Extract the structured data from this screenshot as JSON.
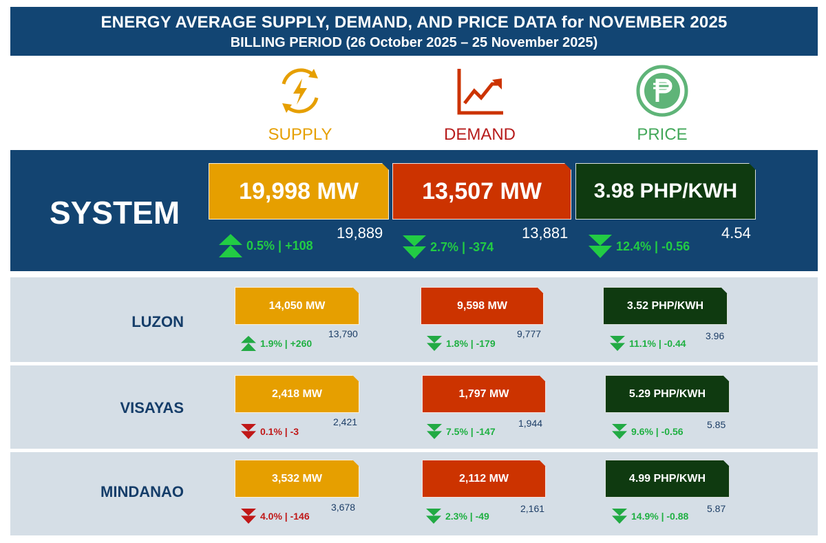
{
  "header": {
    "title": "ENERGY AVERAGE SUPPLY, DEMAND, AND PRICE DATA for NOVEMBER 2025",
    "subtitle": "BILLING PERIOD (26 October 2025 – 25 November 2025)"
  },
  "categories": {
    "supply": "SUPPLY",
    "demand": "DEMAND",
    "price": "PRICE"
  },
  "colors": {
    "supply": "#e69f00",
    "demand": "#cc3300",
    "price": "#0f3a10",
    "up": "#22cc44",
    "down_good": "#22cc44",
    "down_bad": "#c01818"
  },
  "system": {
    "label": "SYSTEM",
    "supply": {
      "value": "19,998 MW",
      "previous": "19,889",
      "change": "0.5% | +108",
      "direction": "up"
    },
    "demand": {
      "value": "13,507 MW",
      "previous": "13,881",
      "change": "2.7% | -374",
      "direction": "down"
    },
    "price": {
      "value": "3.98 PHP/KWH",
      "previous": "4.54",
      "change": "12.4% | -0.56",
      "direction": "down"
    }
  },
  "regions": [
    {
      "label": "LUZON",
      "supply": {
        "value": "14,050 MW",
        "previous": "13,790",
        "change": "1.9% | +260",
        "direction": "up"
      },
      "demand": {
        "value": "9,598 MW",
        "previous": "9,777",
        "change": "1.8% | -179",
        "direction": "down"
      },
      "price": {
        "value": "3.52 PHP/KWH",
        "previous": "3.96",
        "change": "11.1% | -0.44",
        "direction": "down"
      }
    },
    {
      "label": "VISAYAS",
      "supply": {
        "value": "2,418 MW",
        "previous": "2,421",
        "change": "0.1% | -3",
        "direction": "down-bad"
      },
      "demand": {
        "value": "1,797 MW",
        "previous": "1,944",
        "change": "7.5% | -147",
        "direction": "down"
      },
      "price": {
        "value": "5.29 PHP/KWH",
        "previous": "5.85",
        "change": "9.6% | -0.56",
        "direction": "down"
      }
    },
    {
      "label": "MINDANAO",
      "supply": {
        "value": "3,532 MW",
        "previous": "3,678",
        "change": "4.0% | -146",
        "direction": "down-bad"
      },
      "demand": {
        "value": "2,112 MW",
        "previous": "2,161",
        "change": "2.3% | -49",
        "direction": "down"
      },
      "price": {
        "value": "4.99 PHP/KWH",
        "previous": "5.87",
        "change": "14.9% | -0.88",
        "direction": "down"
      }
    }
  ]
}
